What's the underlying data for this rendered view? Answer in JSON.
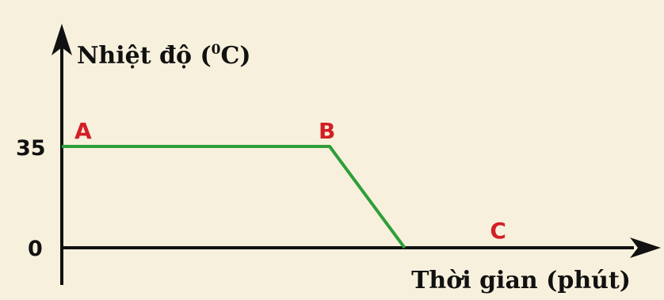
{
  "colors": {
    "background": "#f7f0dc",
    "axis": "#111111",
    "line": "#2e9e3a",
    "point_labels": "#d21f26"
  },
  "chart_data": {
    "type": "line",
    "ylabel": {
      "prefix": "Nhiệt độ (",
      "superscript": "0",
      "suffix": "C)"
    },
    "xlabel": "Thời gian  (phút)",
    "y_ticks": [
      "35",
      "0"
    ],
    "ylim": [
      0,
      35
    ],
    "grid": false,
    "series": [
      {
        "points": [
          {
            "label": "A",
            "x": 0,
            "y": 35
          },
          {
            "label": "B",
            "x": 1,
            "y": 35
          },
          {
            "label": "",
            "x": 1.28,
            "y": 0
          },
          {
            "label": "C",
            "x": 1.64,
            "y": 0
          }
        ]
      }
    ]
  }
}
